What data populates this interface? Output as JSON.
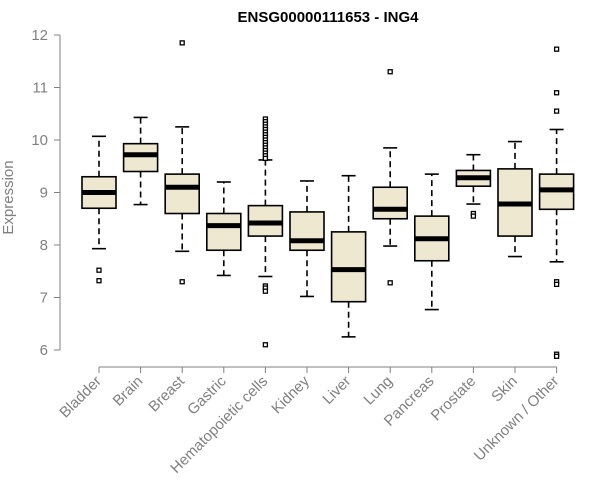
{
  "chart_data": {
    "type": "boxplot",
    "title": "ENSG00000111653 - ING4",
    "xlabel": "",
    "ylabel": "Expression",
    "ylim": [
      6,
      12
    ],
    "yticks": [
      6,
      7,
      8,
      9,
      10,
      11,
      12
    ],
    "box_fill": "#efe8d0",
    "categories": [
      "Bladder",
      "Brain",
      "Breast",
      "Gastric",
      "Hematopoietic cells",
      "Kidney",
      "Liver",
      "Lung",
      "Pancreas",
      "Prostate",
      "Skin",
      "Unknown / Other"
    ],
    "boxes": [
      {
        "category": "Bladder",
        "whisker_low": 7.93,
        "q1": 8.7,
        "median": 9.0,
        "q3": 9.3,
        "whisker_high": 10.07,
        "outliers": [
          7.52,
          7.32
        ]
      },
      {
        "category": "Brain",
        "whisker_low": 8.77,
        "q1": 9.4,
        "median": 9.72,
        "q3": 9.93,
        "whisker_high": 10.43,
        "outliers": []
      },
      {
        "category": "Breast",
        "whisker_low": 7.88,
        "q1": 8.6,
        "median": 9.1,
        "q3": 9.35,
        "whisker_high": 10.25,
        "outliers": [
          11.85,
          7.3
        ]
      },
      {
        "category": "Gastric",
        "whisker_low": 7.42,
        "q1": 7.9,
        "median": 8.37,
        "q3": 8.6,
        "whisker_high": 9.2,
        "outliers": []
      },
      {
        "category": "Hematopoietic cells",
        "whisker_low": 7.4,
        "q1": 8.17,
        "median": 8.42,
        "q3": 8.75,
        "whisker_high": 9.62,
        "outliers": [
          10.4,
          10.35,
          10.3,
          10.25,
          10.2,
          10.15,
          10.1,
          10.05,
          10.0,
          9.95,
          9.9,
          9.85,
          9.8,
          9.75,
          9.7,
          9.65,
          7.22,
          7.18,
          7.12,
          6.1
        ]
      },
      {
        "category": "Kidney",
        "whisker_low": 7.02,
        "q1": 7.9,
        "median": 8.08,
        "q3": 8.63,
        "whisker_high": 9.22,
        "outliers": []
      },
      {
        "category": "Liver",
        "whisker_low": 6.25,
        "q1": 6.92,
        "median": 7.53,
        "q3": 8.25,
        "whisker_high": 9.32,
        "outliers": []
      },
      {
        "category": "Lung",
        "whisker_low": 7.98,
        "q1": 8.5,
        "median": 8.68,
        "q3": 9.1,
        "whisker_high": 9.85,
        "outliers": [
          11.3,
          7.28
        ]
      },
      {
        "category": "Pancreas",
        "whisker_low": 6.77,
        "q1": 7.7,
        "median": 8.12,
        "q3": 8.55,
        "whisker_high": 9.35,
        "outliers": []
      },
      {
        "category": "Prostate",
        "whisker_low": 8.78,
        "q1": 9.12,
        "median": 9.28,
        "q3": 9.42,
        "whisker_high": 9.72,
        "outliers": [
          8.6,
          8.55
        ]
      },
      {
        "category": "Skin",
        "whisker_low": 7.78,
        "q1": 8.17,
        "median": 8.78,
        "q3": 9.45,
        "whisker_high": 9.97,
        "outliers": []
      },
      {
        "category": "Unknown / Other",
        "whisker_low": 7.68,
        "q1": 8.68,
        "median": 9.05,
        "q3": 9.35,
        "whisker_high": 10.2,
        "outliers": [
          11.73,
          10.9,
          10.55,
          7.3,
          7.25,
          5.92,
          5.88
        ]
      }
    ]
  }
}
